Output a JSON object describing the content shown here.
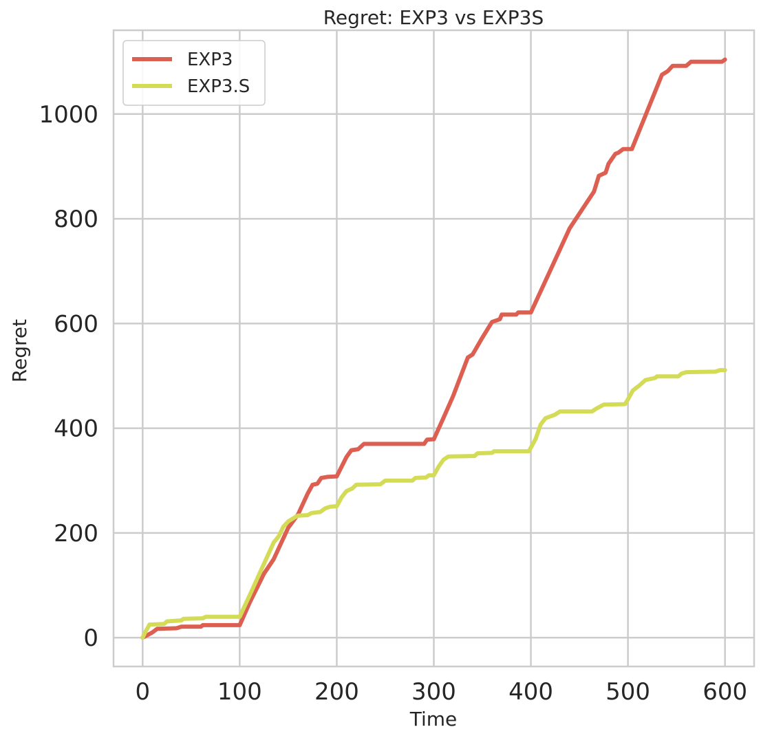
{
  "chart_data": {
    "type": "line",
    "title": "Regret: EXP3 vs EXP3S",
    "xlabel": "Time",
    "ylabel": "Regret",
    "xlim": [
      -30,
      630
    ],
    "ylim": [
      -55,
      1160
    ],
    "xticks": [
      0,
      100,
      200,
      300,
      400,
      500,
      600
    ],
    "yticks": [
      0,
      200,
      400,
      600,
      800,
      1000
    ],
    "grid": true,
    "legend_position": "top-left",
    "series": [
      {
        "name": "EXP3",
        "color": "#dd5f52",
        "points": [
          [
            0,
            0
          ],
          [
            5,
            5
          ],
          [
            10,
            10
          ],
          [
            15,
            17
          ],
          [
            35,
            18
          ],
          [
            40,
            21
          ],
          [
            60,
            21
          ],
          [
            62,
            24
          ],
          [
            100,
            24
          ],
          [
            110,
            66
          ],
          [
            125,
            122
          ],
          [
            135,
            150
          ],
          [
            150,
            210
          ],
          [
            160,
            235
          ],
          [
            170,
            275
          ],
          [
            175,
            292
          ],
          [
            180,
            294
          ],
          [
            184,
            305
          ],
          [
            190,
            307
          ],
          [
            200,
            308
          ],
          [
            210,
            345
          ],
          [
            215,
            358
          ],
          [
            222,
            360
          ],
          [
            228,
            370
          ],
          [
            290,
            370
          ],
          [
            293,
            378
          ],
          [
            300,
            379
          ],
          [
            310,
            420
          ],
          [
            320,
            462
          ],
          [
            335,
            535
          ],
          [
            340,
            541
          ],
          [
            350,
            573
          ],
          [
            360,
            603
          ],
          [
            368,
            608
          ],
          [
            370,
            617
          ],
          [
            385,
            617
          ],
          [
            387,
            621
          ],
          [
            400,
            621
          ],
          [
            440,
            782
          ],
          [
            465,
            852
          ],
          [
            470,
            882
          ],
          [
            477,
            888
          ],
          [
            480,
            905
          ],
          [
            487,
            924
          ],
          [
            490,
            926
          ],
          [
            495,
            933
          ],
          [
            504,
            933
          ],
          [
            535,
            1075
          ],
          [
            541,
            1082
          ],
          [
            546,
            1092
          ],
          [
            560,
            1092
          ],
          [
            565,
            1100
          ],
          [
            597,
            1100
          ],
          [
            600,
            1104
          ]
        ]
      },
      {
        "name": "EXP3.S",
        "color": "#d3db57",
        "points": [
          [
            0,
            0
          ],
          [
            3,
            12
          ],
          [
            5,
            18
          ],
          [
            7,
            25
          ],
          [
            22,
            26
          ],
          [
            25,
            31
          ],
          [
            40,
            33
          ],
          [
            42,
            36
          ],
          [
            62,
            37
          ],
          [
            65,
            40
          ],
          [
            100,
            40
          ],
          [
            110,
            80
          ],
          [
            135,
            182
          ],
          [
            140,
            193
          ],
          [
            145,
            212
          ],
          [
            150,
            222
          ],
          [
            157,
            230
          ],
          [
            160,
            233
          ],
          [
            170,
            234
          ],
          [
            174,
            238
          ],
          [
            183,
            240
          ],
          [
            188,
            247
          ],
          [
            193,
            250
          ],
          [
            200,
            251
          ],
          [
            205,
            268
          ],
          [
            210,
            280
          ],
          [
            216,
            285
          ],
          [
            220,
            292
          ],
          [
            245,
            293
          ],
          [
            250,
            300
          ],
          [
            278,
            300
          ],
          [
            281,
            305
          ],
          [
            292,
            306
          ],
          [
            295,
            310
          ],
          [
            300,
            310
          ],
          [
            305,
            327
          ],
          [
            310,
            340
          ],
          [
            315,
            346
          ],
          [
            342,
            347
          ],
          [
            345,
            352
          ],
          [
            360,
            353
          ],
          [
            362,
            356
          ],
          [
            398,
            356
          ],
          [
            405,
            380
          ],
          [
            410,
            407
          ],
          [
            415,
            419
          ],
          [
            425,
            426
          ],
          [
            430,
            432
          ],
          [
            463,
            432
          ],
          [
            467,
            437
          ],
          [
            475,
            445
          ],
          [
            497,
            446
          ],
          [
            500,
            455
          ],
          [
            505,
            472
          ],
          [
            512,
            482
          ],
          [
            518,
            492
          ],
          [
            528,
            496
          ],
          [
            530,
            499
          ],
          [
            552,
            499
          ],
          [
            555,
            504
          ],
          [
            560,
            507
          ],
          [
            590,
            508
          ],
          [
            595,
            511
          ],
          [
            600,
            511
          ]
        ]
      }
    ]
  }
}
